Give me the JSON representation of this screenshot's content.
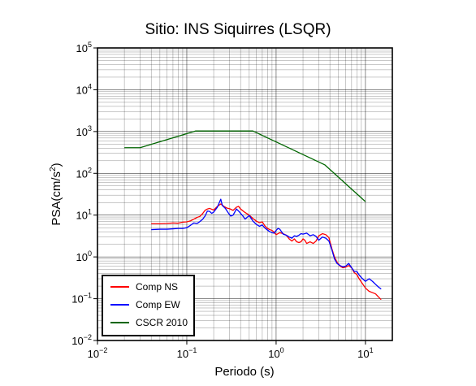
{
  "chart_data": {
    "type": "line",
    "title": "Sitio: INS Siquirres (LSQR)",
    "xlabel": "Periodo (s)",
    "ylabel": "PSA(cm/s²)",
    "ylabel_base": "PSA(cm/s",
    "ylabel_sup": "2",
    "ylabel_end": ")",
    "xscale": "log",
    "yscale": "log",
    "xlim": [
      0.01,
      20
    ],
    "ylim": [
      0.01,
      100000
    ],
    "grid": true,
    "legend_position": "bottom-left",
    "x_ticks": [
      {
        "value": 0.01,
        "base": "10",
        "exp": "−2"
      },
      {
        "value": 0.1,
        "base": "10",
        "exp": "−1"
      },
      {
        "value": 1,
        "base": "10",
        "exp": "0"
      },
      {
        "value": 10,
        "base": "10",
        "exp": "1"
      }
    ],
    "y_ticks": [
      {
        "value": 0.01,
        "base": "10",
        "exp": "−2"
      },
      {
        "value": 0.1,
        "base": "10",
        "exp": "−1"
      },
      {
        "value": 1,
        "base": "10",
        "exp": "0"
      },
      {
        "value": 10,
        "base": "10",
        "exp": "1"
      },
      {
        "value": 100,
        "base": "10",
        "exp": "2"
      },
      {
        "value": 1000,
        "base": "10",
        "exp": "3"
      },
      {
        "value": 10000,
        "base": "10",
        "exp": "4"
      },
      {
        "value": 100000,
        "base": "10",
        "exp": "5"
      }
    ],
    "series": [
      {
        "name": "Comp NS",
        "color": "#ff0000",
        "points": [
          [
            0.04,
            6.2
          ],
          [
            0.05,
            6.2
          ],
          [
            0.06,
            6.3
          ],
          [
            0.07,
            6.5
          ],
          [
            0.08,
            6.4
          ],
          [
            0.09,
            6.8
          ],
          [
            0.1,
            6.9
          ],
          [
            0.11,
            7.3
          ],
          [
            0.12,
            8.0
          ],
          [
            0.13,
            8.8
          ],
          [
            0.14,
            9.3
          ],
          [
            0.15,
            10.8
          ],
          [
            0.16,
            13.0
          ],
          [
            0.17,
            14.0
          ],
          [
            0.18,
            14.5
          ],
          [
            0.2,
            13.2
          ],
          [
            0.22,
            16.2
          ],
          [
            0.24,
            18.5
          ],
          [
            0.26,
            16.2
          ],
          [
            0.28,
            14.8
          ],
          [
            0.3,
            14.3
          ],
          [
            0.33,
            13.0
          ],
          [
            0.36,
            15.5
          ],
          [
            0.38,
            16.2
          ],
          [
            0.4,
            14.0
          ],
          [
            0.45,
            11.5
          ],
          [
            0.5,
            10.0
          ],
          [
            0.55,
            8.3
          ],
          [
            0.6,
            7.2
          ],
          [
            0.65,
            6.6
          ],
          [
            0.7,
            6.9
          ],
          [
            0.75,
            5.5
          ],
          [
            0.8,
            4.8
          ],
          [
            0.85,
            4.5
          ],
          [
            0.9,
            4.3
          ],
          [
            0.95,
            3.9
          ],
          [
            1.0,
            3.4
          ],
          [
            1.1,
            3.8
          ],
          [
            1.2,
            3.6
          ],
          [
            1.3,
            3.3
          ],
          [
            1.4,
            2.7
          ],
          [
            1.5,
            2.4
          ],
          [
            1.6,
            2.7
          ],
          [
            1.7,
            2.3
          ],
          [
            1.8,
            2.2
          ],
          [
            1.9,
            2.3
          ],
          [
            2.0,
            2.7
          ],
          [
            2.1,
            2.5
          ],
          [
            2.2,
            2.1
          ],
          [
            2.4,
            2.3
          ],
          [
            2.6,
            2.1
          ],
          [
            2.8,
            2.4
          ],
          [
            3.0,
            3.2
          ],
          [
            3.3,
            3.6
          ],
          [
            3.6,
            3.4
          ],
          [
            3.9,
            2.9
          ],
          [
            4.2,
            1.6
          ],
          [
            4.5,
            1.0
          ],
          [
            4.8,
            0.75
          ],
          [
            5.2,
            0.6
          ],
          [
            5.6,
            0.55
          ],
          [
            6.0,
            0.57
          ],
          [
            6.5,
            0.62
          ],
          [
            7.0,
            0.55
          ],
          [
            7.5,
            0.42
          ],
          [
            8.0,
            0.38
          ],
          [
            8.5,
            0.3
          ],
          [
            9.0,
            0.25
          ],
          [
            10.0,
            0.18
          ],
          [
            11.0,
            0.15
          ],
          [
            12.0,
            0.14
          ],
          [
            13.0,
            0.13
          ],
          [
            14.0,
            0.11
          ],
          [
            15.0,
            0.095
          ]
        ]
      },
      {
        "name": "Comp EW",
        "color": "#0000ff",
        "points": [
          [
            0.04,
            4.5
          ],
          [
            0.05,
            4.6
          ],
          [
            0.06,
            4.6
          ],
          [
            0.07,
            4.7
          ],
          [
            0.08,
            4.8
          ],
          [
            0.09,
            4.8
          ],
          [
            0.1,
            5.0
          ],
          [
            0.11,
            5.7
          ],
          [
            0.12,
            6.5
          ],
          [
            0.13,
            6.3
          ],
          [
            0.14,
            7.0
          ],
          [
            0.15,
            7.9
          ],
          [
            0.16,
            9.5
          ],
          [
            0.17,
            12.5
          ],
          [
            0.18,
            12.3
          ],
          [
            0.19,
            11.0
          ],
          [
            0.2,
            11.8
          ],
          [
            0.22,
            15.5
          ],
          [
            0.24,
            24.0
          ],
          [
            0.25,
            17.0
          ],
          [
            0.27,
            14.5
          ],
          [
            0.29,
            11.5
          ],
          [
            0.31,
            9.5
          ],
          [
            0.33,
            10.0
          ],
          [
            0.36,
            14.0
          ],
          [
            0.39,
            11.8
          ],
          [
            0.42,
            9.8
          ],
          [
            0.45,
            8.0
          ],
          [
            0.5,
            9.8
          ],
          [
            0.55,
            7.2
          ],
          [
            0.6,
            6.0
          ],
          [
            0.65,
            5.4
          ],
          [
            0.7,
            5.8
          ],
          [
            0.75,
            4.9
          ],
          [
            0.8,
            4.4
          ],
          [
            0.85,
            4.0
          ],
          [
            0.9,
            3.8
          ],
          [
            0.95,
            3.7
          ],
          [
            1.0,
            4.3
          ],
          [
            1.05,
            4.8
          ],
          [
            1.1,
            4.6
          ],
          [
            1.2,
            3.5
          ],
          [
            1.3,
            3.3
          ],
          [
            1.4,
            3.0
          ],
          [
            1.5,
            2.8
          ],
          [
            1.6,
            3.2
          ],
          [
            1.7,
            3.1
          ],
          [
            1.8,
            3.3
          ],
          [
            1.9,
            3.6
          ],
          [
            2.0,
            3.5
          ],
          [
            2.2,
            3.7
          ],
          [
            2.4,
            3.2
          ],
          [
            2.6,
            3.4
          ],
          [
            2.8,
            3.1
          ],
          [
            3.0,
            2.5
          ],
          [
            3.3,
            3.0
          ],
          [
            3.6,
            2.8
          ],
          [
            3.9,
            2.4
          ],
          [
            4.2,
            1.5
          ],
          [
            4.5,
            0.9
          ],
          [
            4.8,
            0.7
          ],
          [
            5.2,
            0.62
          ],
          [
            5.6,
            0.58
          ],
          [
            6.0,
            0.6
          ],
          [
            6.5,
            0.7
          ],
          [
            7.0,
            0.55
          ],
          [
            7.5,
            0.45
          ],
          [
            8.0,
            0.45
          ],
          [
            8.5,
            0.37
          ],
          [
            9.0,
            0.32
          ],
          [
            10.0,
            0.26
          ],
          [
            11.0,
            0.3
          ],
          [
            12.0,
            0.26
          ],
          [
            13.0,
            0.22
          ],
          [
            14.0,
            0.19
          ],
          [
            15.0,
            0.17
          ]
        ]
      },
      {
        "name": "CSCR 2010",
        "color": "#006600",
        "points": [
          [
            0.02,
            410
          ],
          [
            0.03,
            410
          ],
          [
            0.125,
            1030
          ],
          [
            0.55,
            1030
          ],
          [
            3.5,
            160
          ],
          [
            10.0,
            21
          ]
        ]
      }
    ]
  }
}
